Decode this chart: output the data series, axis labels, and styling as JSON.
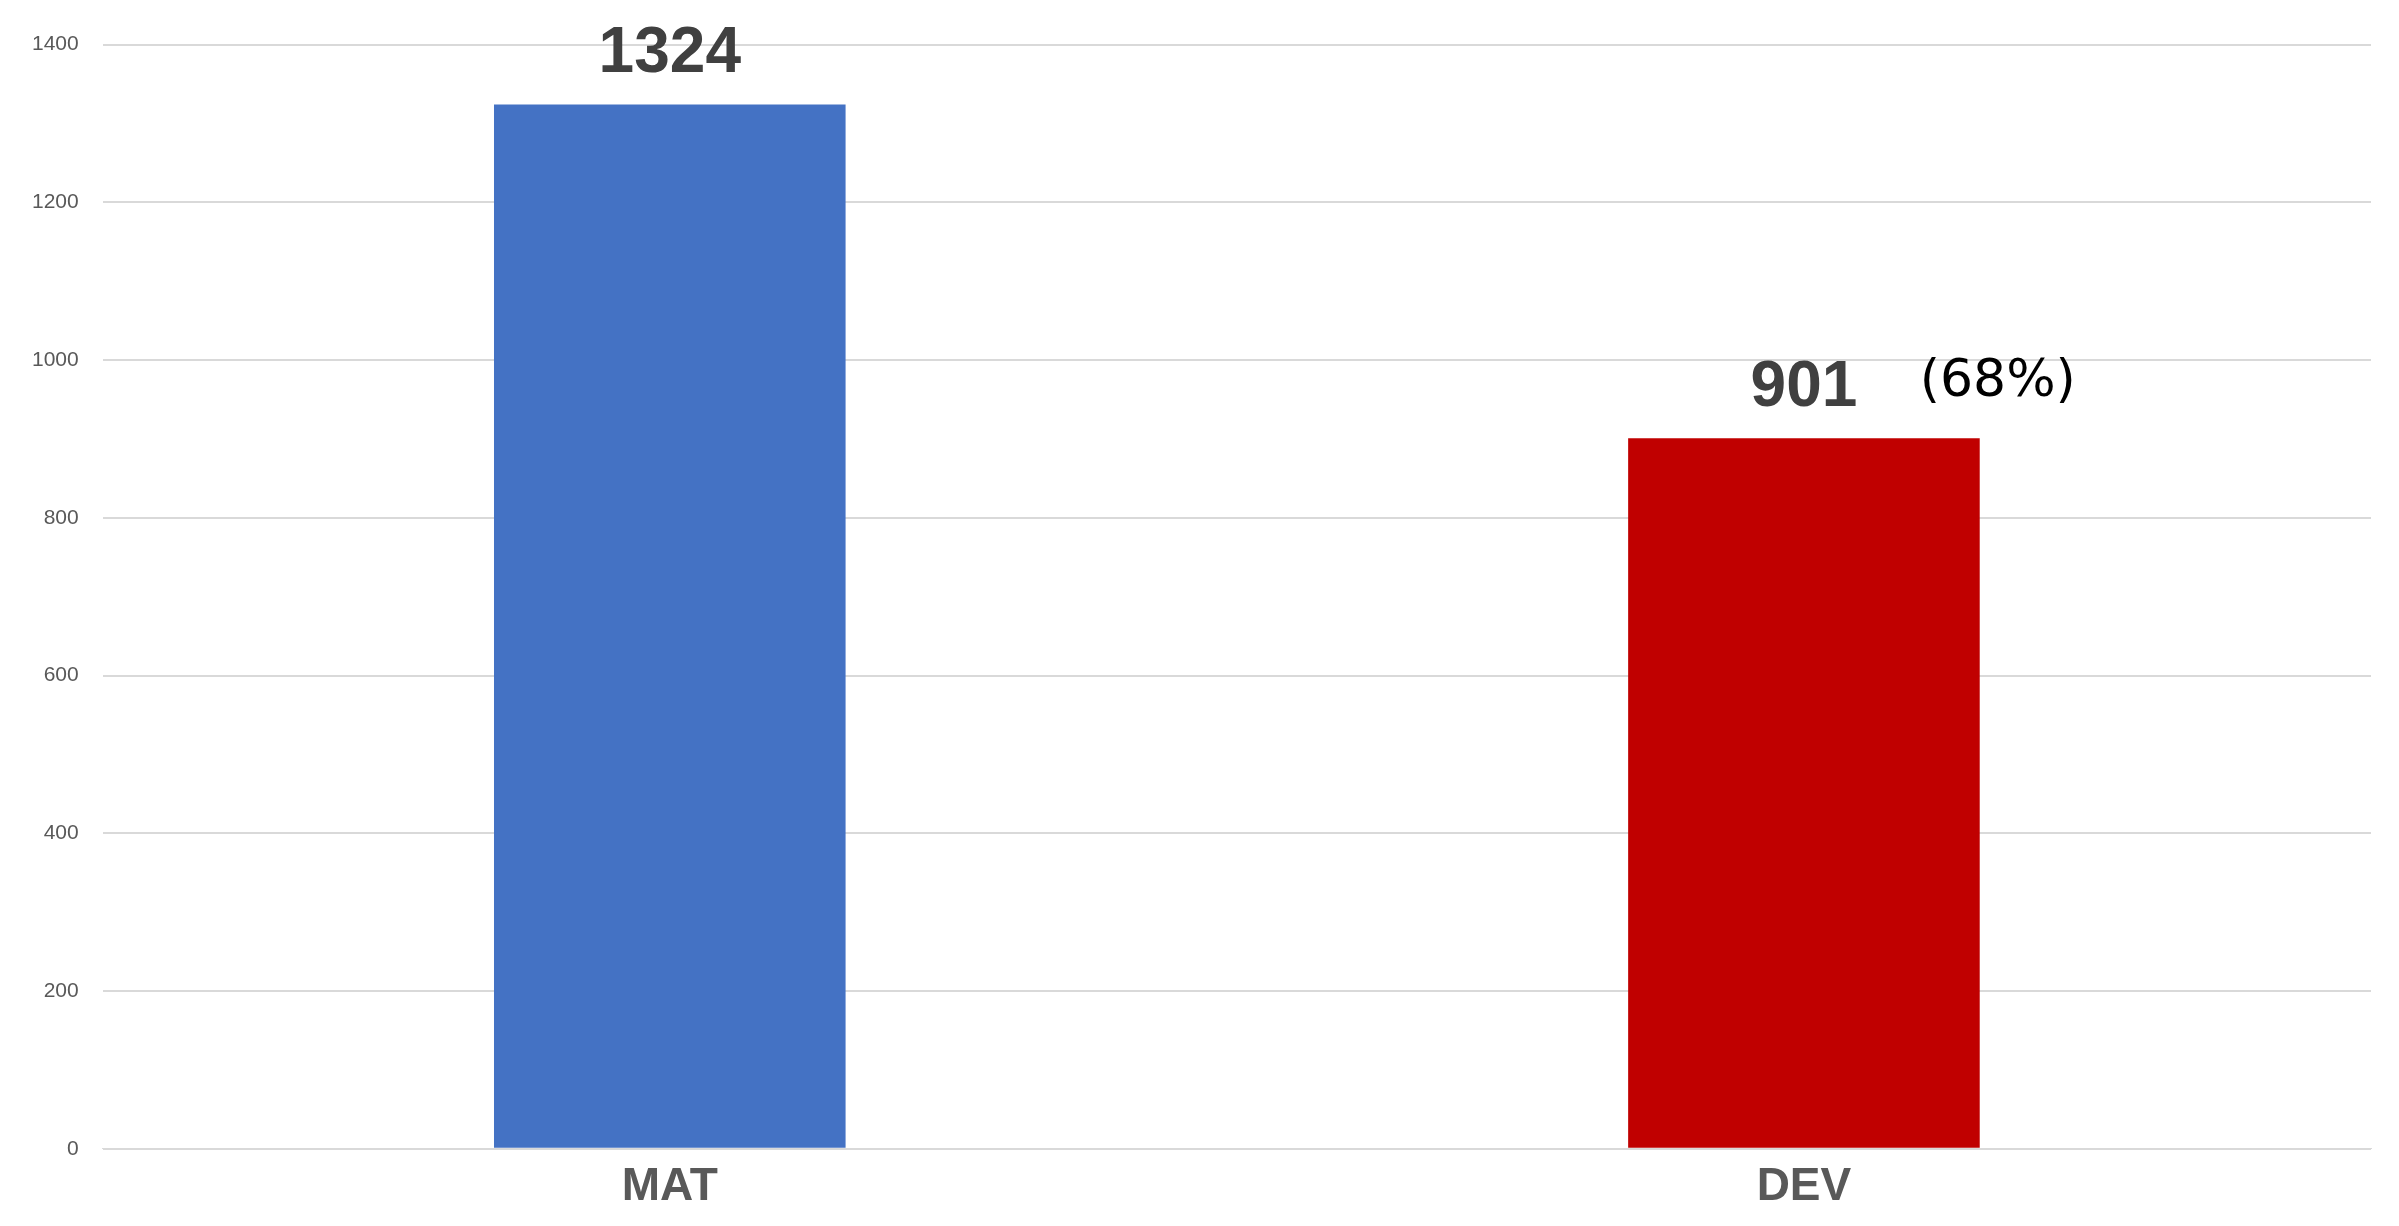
{
  "chart_data": {
    "type": "bar",
    "categories": [
      "MAT",
      "DEV"
    ],
    "values": [
      1324,
      901
    ],
    "colors": [
      "#4472c4",
      "#c00000"
    ],
    "ylim": [
      0,
      1400
    ],
    "yticks": [
      0,
      200,
      400,
      600,
      800,
      1000,
      1200,
      1400
    ],
    "grid": "y",
    "data_labels": true,
    "legend": false,
    "annotations": [
      {
        "text": "(68%)",
        "x": "DEV",
        "y": 901
      }
    ]
  }
}
